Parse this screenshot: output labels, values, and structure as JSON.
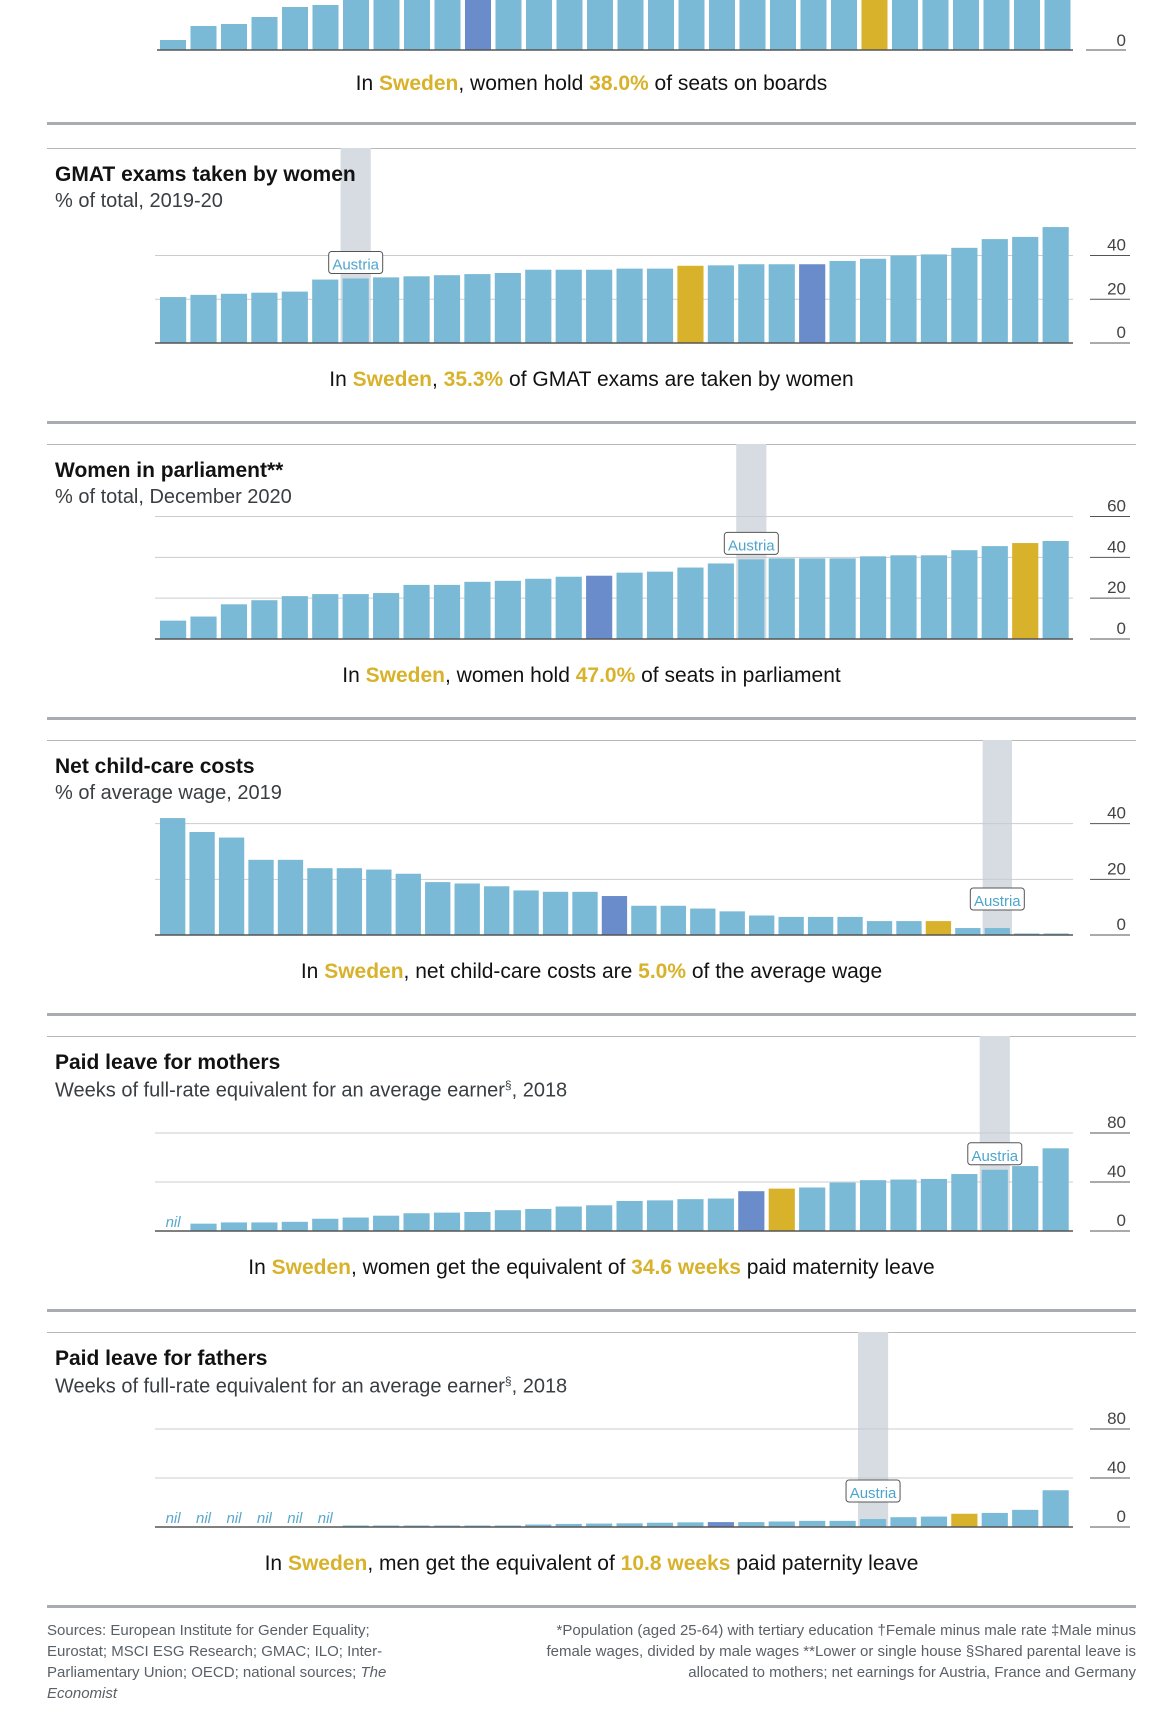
{
  "top_fragment": {
    "caption": {
      "pre": "In ",
      "country": "Sweden",
      "mid": ", women hold ",
      "value": "38.0%",
      "post": " of seats on boards"
    },
    "tick_zero": "0"
  },
  "colors": {
    "bar": "#7bbad6",
    "highlight": "#d9b22b",
    "average": "#6a8ccb",
    "austria_band": "#d6dce2",
    "grid": "#c9cdd1"
  },
  "chart_data": [
    {
      "type": "bar",
      "title": "GMAT exams taken by women",
      "subtitle": "% of total, 2019-20",
      "ylim": [
        0,
        56
      ],
      "yticks": [
        0,
        20,
        40
      ],
      "ytick_labels": [
        "0",
        "20",
        "40"
      ],
      "values": [
        21,
        22,
        22.5,
        23,
        23.5,
        29,
        29.5,
        30,
        30.5,
        31,
        31.5,
        32,
        33.5,
        33.5,
        33.5,
        34,
        34,
        35.3,
        35.5,
        36,
        36,
        36,
        37.5,
        38.5,
        40,
        40.5,
        43.5,
        47.5,
        48.5,
        53
      ],
      "highlight_index": 17,
      "average_index": 21,
      "austria_index": 6,
      "austria_label": "Austria",
      "caption": {
        "pre": "In ",
        "country": "Sweden",
        "mid": ", ",
        "value": "35.3%",
        "post": " of GMAT exams are taken by women"
      }
    },
    {
      "type": "bar",
      "title": "Women in parliament**",
      "subtitle": "% of total, December 2020",
      "ylim": [
        0,
        60
      ],
      "yticks": [
        0,
        20,
        40,
        60
      ],
      "ytick_labels": [
        "0",
        "20",
        "40",
        "60"
      ],
      "values": [
        9,
        11,
        17,
        19,
        21,
        22,
        22,
        22.5,
        26.5,
        26.5,
        28,
        28.5,
        29.5,
        30.5,
        31,
        32.5,
        33,
        35,
        37,
        39,
        39.5,
        39.5,
        39.5,
        40.5,
        41,
        41,
        43.5,
        45.5,
        47,
        48
      ],
      "highlight_index": 28,
      "average_index": 14,
      "austria_index": 19,
      "austria_label": "Austria",
      "caption": {
        "pre": "In ",
        "country": "Sweden",
        "mid": ", women hold ",
        "value": "47.0%",
        "post": " of seats in parliament"
      }
    },
    {
      "type": "bar",
      "title": "Net child-care costs",
      "subtitle": "% of average wage, 2019",
      "ylim": [
        0,
        44
      ],
      "yticks": [
        0,
        20,
        40
      ],
      "ytick_labels": [
        "0",
        "20",
        "40"
      ],
      "values": [
        42,
        37,
        35,
        27,
        27,
        24,
        24,
        23.5,
        22,
        19,
        18.5,
        17.5,
        16,
        15.5,
        15.5,
        14,
        10.5,
        10.5,
        9.5,
        8.5,
        7,
        6.5,
        6.5,
        6.5,
        5,
        5,
        5,
        2.5,
        2.5,
        0.5,
        0.5
      ],
      "highlight_index": 26,
      "average_index": 15,
      "austria_index": 28,
      "austria_label": "Austria",
      "caption": {
        "pre": "In ",
        "country": "Sweden",
        "mid": ", net child-care costs are ",
        "value": "5.0%",
        "post": " of the average wage"
      }
    },
    {
      "type": "bar",
      "title": "Paid leave for mothers",
      "subtitle": "Weeks of full-rate equivalent for an average earner",
      "subtitle_sup": "§",
      "subtitle_post": ", 2018",
      "ylim": [
        0,
        100
      ],
      "yticks": [
        0,
        40,
        80
      ],
      "ytick_labels": [
        "0",
        "40",
        "80"
      ],
      "nil_label": "nil",
      "values": [
        0,
        6,
        7,
        7,
        7.5,
        10,
        11,
        12.5,
        14.5,
        15,
        15.5,
        17,
        18,
        20,
        21,
        24.5,
        25,
        26,
        26.5,
        32.5,
        34.6,
        35.5,
        39.5,
        41.5,
        42,
        42.5,
        46.5,
        50,
        53,
        67.5
      ],
      "highlight_index": 20,
      "average_index": 19,
      "austria_index": 27,
      "austria_label": "Austria",
      "caption": {
        "pre": "In ",
        "country": "Sweden",
        "mid": ", women get the equivalent of ",
        "value": "34.6 weeks",
        "post": " paid maternity leave"
      }
    },
    {
      "type": "bar",
      "title": "Paid leave for fathers",
      "subtitle": "Weeks of full-rate equivalent for an average earner",
      "subtitle_sup": "§",
      "subtitle_post": ", 2018",
      "ylim": [
        0,
        100
      ],
      "yticks": [
        0,
        40,
        80
      ],
      "ytick_labels": [
        "0",
        "40",
        "80"
      ],
      "nil_label": "nil",
      "values": [
        0,
        0,
        0,
        0,
        0,
        0,
        0.3,
        0.4,
        0.5,
        0.6,
        0.8,
        1.2,
        2,
        2.5,
        2.8,
        3,
        3.5,
        3.8,
        4,
        4,
        4.5,
        5,
        5,
        6.5,
        8,
        8.5,
        10.8,
        11.5,
        14,
        30
      ],
      "highlight_index": 26,
      "average_index": 18,
      "austria_index": 23,
      "austria_label": "Austria",
      "caption": {
        "pre": "In ",
        "country": "Sweden",
        "mid": ", men get the equivalent of ",
        "value": "10.8 weeks",
        "post": " paid paternity leave"
      }
    }
  ],
  "footer": {
    "sources": "Sources: European Institute for Gender Equality; Eurostat; MSCI ESG Research; GMAC; ILO; Inter-Parliamentary Union; OECD; national sources; ",
    "sources_italic": "The Economist",
    "notes": "*Population (aged 25-64) with tertiary education  †Female minus male rate  ‡Male minus female wages, divided by male wages  **Lower or single house  §Shared parental leave is allocated to mothers; net earnings for Austria, France and Germany"
  }
}
